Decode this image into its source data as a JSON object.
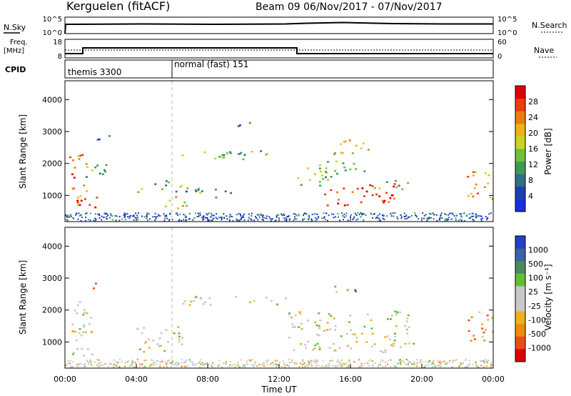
{
  "header": {
    "station": "Kerguelen (fitACF)",
    "beam_dates": "Beam 09  06/Nov/2017 - 07/Nov/2017"
  },
  "noise_panel": {
    "left_label": "N.Sky",
    "left_ticks": [
      "10^5",
      "10^0"
    ],
    "right_label": "N.Search",
    "right_ticks": [
      "10^5",
      "10^0"
    ]
  },
  "freq_panel": {
    "left_label_1": "Freq.",
    "left_label_2": "[MHz]",
    "left_ticks": [
      "18",
      "8"
    ],
    "right_label": "Nave",
    "right_ticks": [
      "60",
      "0"
    ]
  },
  "cpid_panel": {
    "label": "CPID",
    "mode_1": "themis 3300",
    "mode_2": "normal (fast) 151"
  },
  "chart_data": [
    {
      "type": "heatmap",
      "quantity": "Power",
      "ylabel": "Slant Range [km]",
      "xlabel": "",
      "ylim": [
        180,
        4590
      ],
      "xlim_hours": [
        0,
        24
      ],
      "y_ticks": [
        1000,
        2000,
        3000,
        4000
      ],
      "colorbar_label": "Power [dB]",
      "colorbar_ticks": [
        "4",
        "8",
        "12",
        "16",
        "20",
        "24",
        "28"
      ],
      "colorbar_colors": [
        "#1530e0",
        "#1e3fb0",
        "#2e6f8a",
        "#3c9b57",
        "#6fbf3a",
        "#c9d12a",
        "#f2b019",
        "#f07a10",
        "#e83e0c",
        "#e00000"
      ],
      "mode_change_hour": 6,
      "regions": [
        {
          "t0": 0.2,
          "t1": 1.2,
          "r0": 600,
          "r1": 2400,
          "level": 0.75
        },
        {
          "t0": 0.5,
          "t1": 1.8,
          "r0": 650,
          "r1": 1000,
          "level": 0.95
        },
        {
          "t0": 1.0,
          "t1": 2.5,
          "r0": 1500,
          "r1": 2100,
          "level": 0.4
        },
        {
          "t0": 1.5,
          "t1": 2.5,
          "r0": 2700,
          "r1": 3000,
          "level": 0.25
        },
        {
          "t0": 4.0,
          "t1": 6.5,
          "r0": 1100,
          "r1": 1500,
          "level": 0.35
        },
        {
          "t0": 5.5,
          "t1": 7.0,
          "r0": 600,
          "r1": 1000,
          "level": 0.65
        },
        {
          "t0": 6.5,
          "t1": 12.5,
          "r0": 2150,
          "r1": 2450,
          "level": 0.4
        },
        {
          "t0": 6.5,
          "t1": 10.0,
          "r0": 950,
          "r1": 1250,
          "level": 0.35
        },
        {
          "t0": 9.5,
          "t1": 11.0,
          "r0": 3150,
          "r1": 3300,
          "level": 0.2
        },
        {
          "t0": 13.0,
          "t1": 15.0,
          "r0": 1200,
          "r1": 1900,
          "level": 0.45
        },
        {
          "t0": 14.0,
          "t1": 17.0,
          "r0": 1700,
          "r1": 2100,
          "level": 0.45
        },
        {
          "t0": 14.5,
          "t1": 18.5,
          "r0": 700,
          "r1": 1400,
          "level": 0.9
        },
        {
          "t0": 15.0,
          "t1": 17.0,
          "r0": 2300,
          "r1": 2900,
          "level": 0.55
        },
        {
          "t0": 17.0,
          "t1": 19.5,
          "r0": 1200,
          "r1": 1500,
          "level": 0.4
        },
        {
          "t0": 22.5,
          "t1": 24.0,
          "r0": 900,
          "r1": 1900,
          "level": 0.7
        }
      ]
    },
    {
      "type": "heatmap",
      "quantity": "Velocity",
      "ylabel": "Slant Range [km]",
      "xlabel": "Time UT",
      "ylim": [
        180,
        4590
      ],
      "xlim_hours": [
        0,
        24
      ],
      "y_ticks": [
        1000,
        2000,
        3000,
        4000
      ],
      "x_ticks": [
        "00:00",
        "04:00",
        "08:00",
        "12:00",
        "16:00",
        "20:00",
        "00:00"
      ],
      "colorbar_label": "Velocity [m s⁻¹]",
      "colorbar_ticks": [
        "1000",
        "500",
        "100",
        "25",
        "-25",
        "-100",
        "-500",
        "-1000"
      ],
      "colorbar_colors": [
        "#2440c8",
        "#3c62a8",
        "#4a8a60",
        "#62c030",
        "#c8c8c8",
        "#c8c8c8",
        "#f0b020",
        "#f08a10",
        "#e85010",
        "#e00000"
      ],
      "mode_change_hour": 6,
      "regions": [
        {
          "t0": 0.2,
          "t1": 1.5,
          "r0": 600,
          "r1": 2300,
          "level": 0.5
        },
        {
          "t0": 0.3,
          "t1": 2.0,
          "r0": 1200,
          "r1": 1400,
          "level": 0.7
        },
        {
          "t0": 1.5,
          "t1": 2.5,
          "r0": 2700,
          "r1": 2900,
          "level": 0.75
        },
        {
          "t0": 4.0,
          "t1": 7.0,
          "r0": 700,
          "r1": 1500,
          "level": 0.5
        },
        {
          "t0": 6.5,
          "t1": 12.5,
          "r0": 2150,
          "r1": 2450,
          "level": 0.5
        },
        {
          "t0": 12.5,
          "t1": 19.5,
          "r0": 700,
          "r1": 2000,
          "level": 0.5
        },
        {
          "t0": 15.0,
          "t1": 16.5,
          "r0": 2500,
          "r1": 2800,
          "level": 0.3
        },
        {
          "t0": 22.5,
          "t1": 24.0,
          "r0": 1000,
          "r1": 2000,
          "level": 0.7
        }
      ]
    }
  ]
}
